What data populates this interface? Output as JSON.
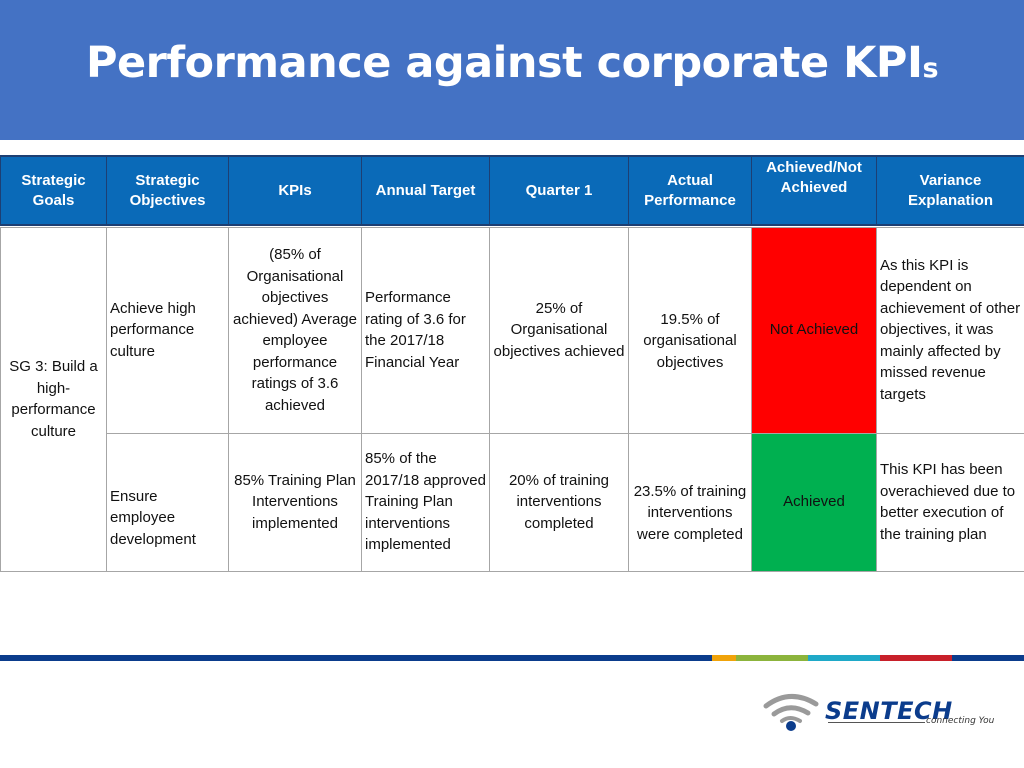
{
  "title": {
    "main": "Performance against corporate KPI",
    "suffix": "s"
  },
  "table": {
    "headers": [
      "Strategic Goals",
      "Strategic Objectives",
      "KPIs",
      "Annual Target",
      "Quarter 1",
      "Actual Performance",
      "Achieved/Not Achieved",
      "Variance Explanation"
    ],
    "goal": "SG 3: Build a high-performance culture",
    "rows": [
      {
        "objective": "Achieve high performance culture",
        "kpi": "(85% of Organisational objectives achieved) Average employee performance ratings of 3.6 achieved",
        "annual_target": "Performance rating of 3.6 for the 2017/18 Financial Year",
        "quarter1": "25% of Organisational objectives achieved",
        "actual": "19.5% of organisational objectives",
        "status": "Not Achieved",
        "variance": "As this KPI is dependent on achievement of other objectives, it was mainly affected by missed revenue targets"
      },
      {
        "objective": "Ensure employee development",
        "kpi": "85% Training Plan Interventions implemented",
        "annual_target": "85% of the 2017/18 approved Training Plan interventions implemented",
        "quarter1": "20% of training interventions completed",
        "actual": "23.5% of training interventions were completed",
        "status": "Achieved",
        "variance": "This KPI has been overachieved due to better execution of the training plan"
      }
    ]
  },
  "colors": {
    "title_bg": "#4472c4",
    "header_bg": "#0a6ab8",
    "not_achieved": "#ff0000",
    "achieved": "#00b050"
  },
  "footer": {
    "stripe_colors": [
      "#0b3c8c",
      "#f0a30a",
      "#8cb43c",
      "#1fa9c8",
      "#c8202a",
      "#0b3c8c"
    ],
    "logo": {
      "name": "SENTECH",
      "tagline": "connecting You",
      "icon": "wifi-signal-icon"
    }
  }
}
